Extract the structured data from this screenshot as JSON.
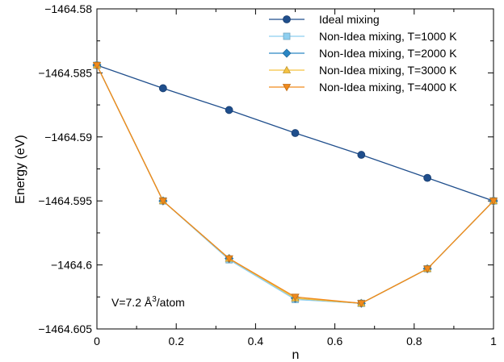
{
  "chart_data": {
    "type": "line",
    "xlabel": "n",
    "ylabel": "Energy (eV)",
    "xlim": [
      0,
      1
    ],
    "ylim": [
      -1464.605,
      -1464.58
    ],
    "x_ticks": [
      0,
      0.2,
      0.4,
      0.6,
      0.8,
      1
    ],
    "x_tick_labels": [
      "0",
      "0.2",
      "0.4",
      "0.6",
      "0.8",
      "1"
    ],
    "y_ticks": [
      -1464.58,
      -1464.585,
      -1464.59,
      -1464.595,
      -1464.6,
      -1464.605
    ],
    "y_tick_labels": [
      "−1464.58",
      "−1464.585",
      "−1464.59",
      "−1464.595",
      "−1464.6",
      "−1464.605"
    ],
    "grid": false,
    "legend_position": "top-right",
    "annotation": {
      "prefix": "V=7.2 Å",
      "sup": "3",
      "suffix": "/atom"
    },
    "series": [
      {
        "name": "Ideal mixing",
        "color": "#1f4e8c",
        "marker": "circle",
        "x": [
          0,
          0.1667,
          0.3333,
          0.5,
          0.6667,
          0.8333,
          1
        ],
        "y": [
          -1464.5844,
          -1464.5862,
          -1464.5879,
          -1464.5897,
          -1464.5914,
          -1464.5932,
          -1464.595
        ]
      },
      {
        "name": "Non-Idea mixing, T=1000 K",
        "color": "#8ecff0",
        "marker": "square",
        "x": [
          0,
          0.1667,
          0.3333,
          0.5,
          0.6667,
          0.8333,
          1
        ],
        "y": [
          -1464.5844,
          -1464.595,
          -1464.5996,
          -1464.6027,
          -1464.603,
          -1464.6003,
          -1464.595
        ]
      },
      {
        "name": "Non-Idea mixing, T=2000 K",
        "color": "#2a86c4",
        "marker": "diamond",
        "x": [
          0,
          0.1667,
          0.3333,
          0.5,
          0.6667,
          0.8333,
          1
        ],
        "y": [
          -1464.5844,
          -1464.595,
          -1464.5995,
          -1464.6026,
          -1464.603,
          -1464.6003,
          -1464.595
        ]
      },
      {
        "name": "Non-Idea mixing, T=3000 K",
        "color": "#f5c242",
        "marker": "triangle-up",
        "x": [
          0,
          0.1667,
          0.3333,
          0.5,
          0.6667,
          0.8333,
          1
        ],
        "y": [
          -1464.5844,
          -1464.595,
          -1464.5995,
          -1464.6026,
          -1464.603,
          -1464.6003,
          -1464.595
        ]
      },
      {
        "name": "Non-Idea mixing, T=4000 K",
        "color": "#f08a1c",
        "marker": "triangle-down",
        "x": [
          0,
          0.1667,
          0.3333,
          0.5,
          0.6667,
          0.8333,
          1
        ],
        "y": [
          -1464.5844,
          -1464.595,
          -1464.5995,
          -1464.6025,
          -1464.603,
          -1464.6003,
          -1464.595
        ]
      }
    ]
  }
}
